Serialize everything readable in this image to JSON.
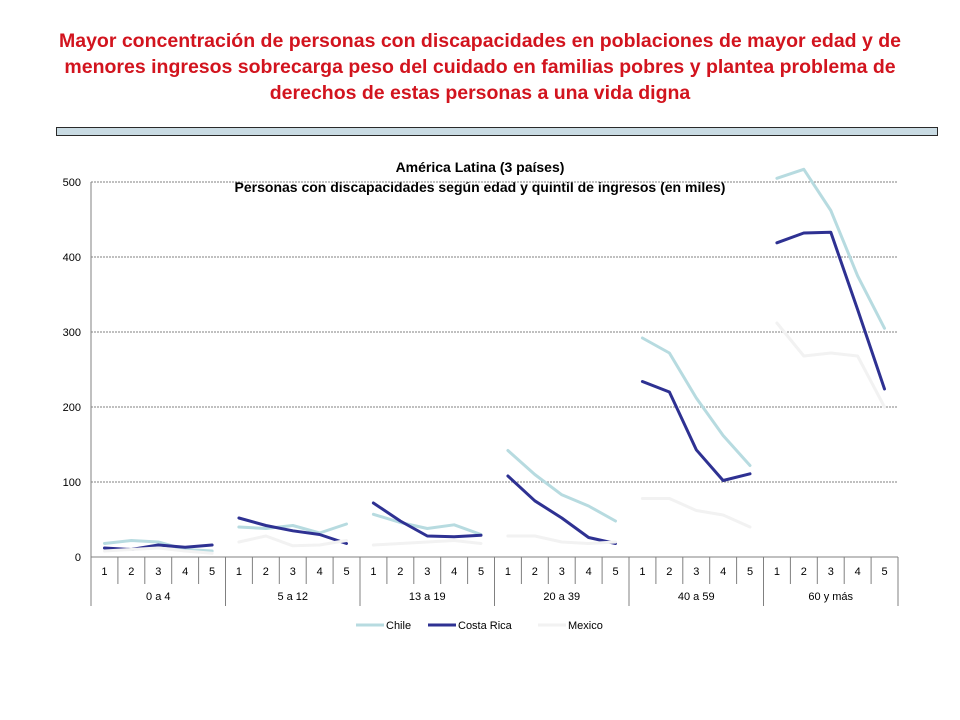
{
  "slide": {
    "title": "Mayor concentración de personas con discapacidades en poblaciones de mayor edad y de menores ingresos sobrecarga peso del cuidado en familias pobres y plantea problema de derechos de estas personas a una vida digna"
  },
  "colors": {
    "title": "#d2141e",
    "Chile": "#b7dbe0",
    "Costa Rica": "#2e3192",
    "Mexico": "#f2f2f2",
    "gridline": "#808080"
  },
  "chart_data": {
    "type": "line",
    "title": "América Latina (3 países)",
    "subtitle": "Personas con discapacidades según edad y quintil de ingresos (en miles)",
    "xlabel": "",
    "ylabel": "",
    "ylim": [
      0,
      500
    ],
    "yticks": [
      "0",
      "100",
      "200",
      "300",
      "400",
      "500"
    ],
    "grid": true,
    "legend_position": "bottom",
    "groups": [
      {
        "label": "0 a 4",
        "quintiles": [
          "1",
          "2",
          "3",
          "4",
          "5"
        ]
      },
      {
        "label": "5 a 12",
        "quintiles": [
          "1",
          "2",
          "3",
          "4",
          "5"
        ]
      },
      {
        "label": "13 a 19",
        "quintiles": [
          "1",
          "2",
          "3",
          "4",
          "5"
        ]
      },
      {
        "label": "20 a 39",
        "quintiles": [
          "1",
          "2",
          "3",
          "4",
          "5"
        ]
      },
      {
        "label": "40 a 59",
        "quintiles": [
          "1",
          "2",
          "3",
          "4",
          "5"
        ]
      },
      {
        "label": "60 y más",
        "quintiles": [
          "1",
          "2",
          "3",
          "4",
          "5"
        ]
      }
    ],
    "series": [
      {
        "name": "Chile",
        "values": [
          [
            18,
            22,
            20,
            10,
            8
          ],
          [
            40,
            38,
            42,
            32,
            44
          ],
          [
            57,
            46,
            38,
            43,
            30
          ],
          [
            142,
            110,
            83,
            68,
            48
          ],
          [
            292,
            272,
            212,
            162,
            122
          ],
          [
            505,
            517,
            462,
            375,
            305
          ]
        ]
      },
      {
        "name": "Costa Rica",
        "values": [
          [
            12,
            10,
            16,
            13,
            16
          ],
          [
            52,
            42,
            35,
            30,
            18
          ],
          [
            72,
            48,
            28,
            27,
            29
          ],
          [
            108,
            75,
            52,
            26,
            18
          ],
          [
            234,
            220,
            143,
            102,
            111
          ],
          [
            419,
            432,
            433,
            330,
            224
          ]
        ]
      },
      {
        "name": "Mexico",
        "values": [
          [
            8,
            10,
            12,
            8,
            5
          ],
          [
            20,
            28,
            15,
            16,
            22
          ],
          [
            16,
            18,
            20,
            22,
            18
          ],
          [
            28,
            28,
            20,
            18,
            20
          ],
          [
            78,
            78,
            62,
            56,
            40
          ],
          [
            312,
            268,
            272,
            268,
            200
          ]
        ]
      }
    ]
  }
}
